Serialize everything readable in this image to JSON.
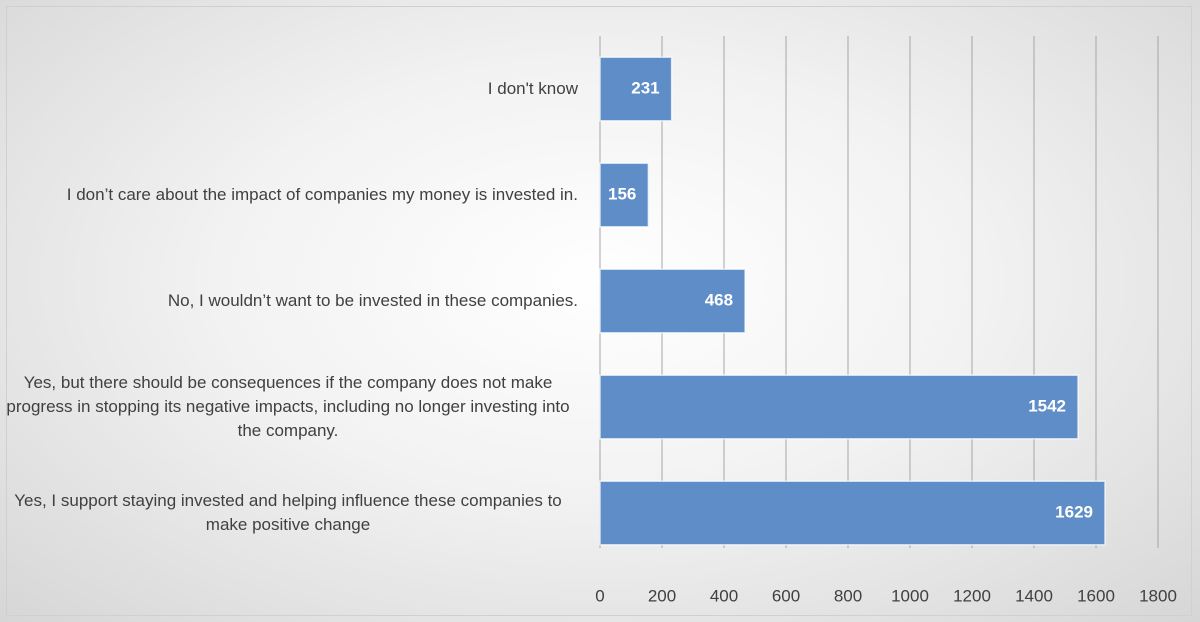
{
  "chart_data": {
    "type": "bar",
    "orientation": "horizontal",
    "categories": [
      "I don't know",
      "I don’t care about the impact of companies my money is invested in.",
      "No, I wouldn’t want to be invested in these companies.",
      "Yes, but there should be consequences if the company does not make progress in stopping its negative impacts, including no longer investing into the company.",
      "Yes, I support staying invested and helping influence these companies to make positive change"
    ],
    "values": [
      231,
      156,
      468,
      1542,
      1629
    ],
    "color": "#5f8dc8",
    "xlim": [
      0,
      1800
    ],
    "xticks": [
      0,
      200,
      400,
      600,
      800,
      1000,
      1200,
      1400,
      1600,
      1800
    ],
    "grid": true
  }
}
